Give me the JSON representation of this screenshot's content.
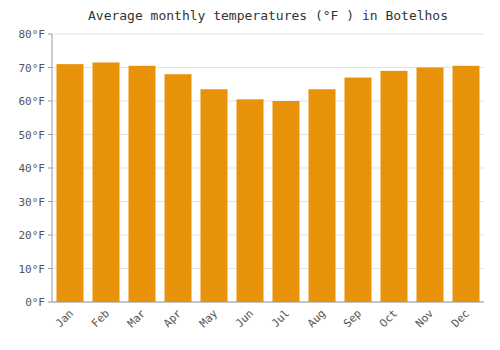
{
  "chart_data": {
    "type": "bar",
    "title": "Average monthly temperatures (°F ) in Botelhos",
    "categories": [
      "Jan",
      "Feb",
      "Mar",
      "Apr",
      "May",
      "Jun",
      "Jul",
      "Aug",
      "Sep",
      "Oct",
      "Nov",
      "Dec"
    ],
    "values": [
      71,
      71.5,
      70.5,
      68,
      63.5,
      60.5,
      60,
      63.5,
      67,
      69,
      70,
      70.5
    ],
    "color": "#E8920A",
    "ylim": [
      0,
      80
    ],
    "yticks": [
      {
        "value": 0,
        "label": "0°F"
      },
      {
        "value": 10,
        "label": "10°F"
      },
      {
        "value": 20,
        "label": "20°F"
      },
      {
        "value": 30,
        "label": "30°F"
      },
      {
        "value": 40,
        "label": "40°F"
      },
      {
        "value": 50,
        "label": "50°F"
      },
      {
        "value": 60,
        "label": "60°F"
      },
      {
        "value": 70,
        "label": "70°F"
      },
      {
        "value": 80,
        "label": "80°F"
      }
    ],
    "grid": true
  }
}
